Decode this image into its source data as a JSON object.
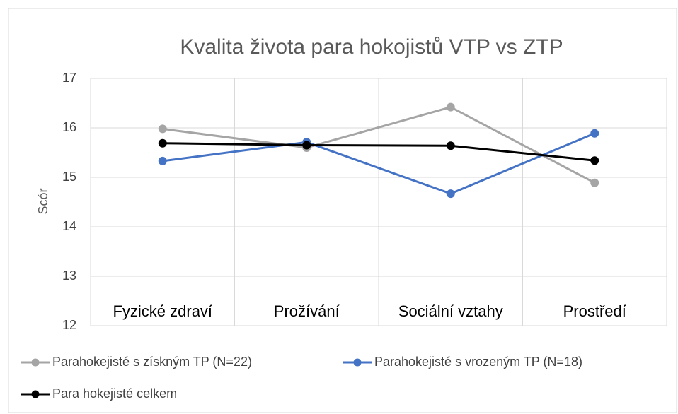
{
  "chart_data": {
    "type": "line",
    "title": "Kvalita života para hokojistů VTP vs ZTP",
    "y_label": "Scór",
    "categories": [
      "Fyzické zdraví",
      "Prožívání",
      "Sociální vztahy",
      "Prostředí"
    ],
    "series": [
      {
        "name": "Parahokejisté s získným TP (N=22)",
        "color": "#a5a5a5",
        "values": [
          15.98,
          15.6,
          16.42,
          14.89
        ]
      },
      {
        "name": "Parahokejisté s vrozeným TP (N=18)",
        "color": "#4472c4",
        "values": [
          15.33,
          15.71,
          14.67,
          15.89
        ]
      },
      {
        "name": "Para hokejisté celkem",
        "color": "#000000",
        "values": [
          15.69,
          15.65,
          15.64,
          15.34
        ]
      }
    ],
    "ylim": [
      12,
      17
    ],
    "yticks": [
      12,
      13,
      14,
      15,
      16,
      17
    ],
    "grid": true
  }
}
